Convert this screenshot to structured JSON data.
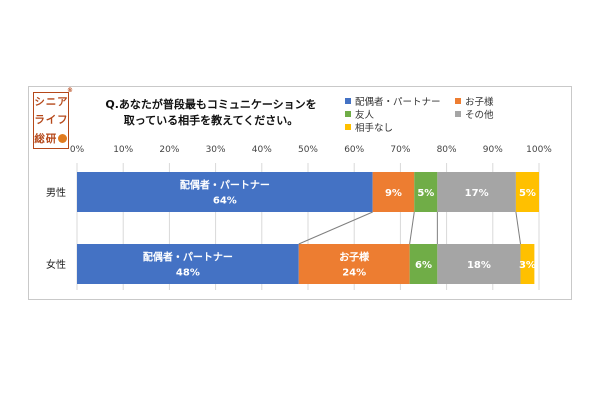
{
  "logo": {
    "chars": [
      "シ",
      "ニ",
      "ア",
      "ラ",
      "イ",
      "フ",
      "総",
      "研"
    ],
    "reg_mark": "®"
  },
  "title_lines": [
    "Q.あなたが普段最もコミュニケーションを",
    "取っている相手を教えてください。"
  ],
  "colors": {
    "partner": "#4472c4",
    "child": "#ed7d31",
    "friend": "#70ad47",
    "other": "#a5a5a5",
    "none": "#ffc000",
    "grid": "#d9d9d9",
    "connector": "#7f7f7f"
  },
  "chart_data": {
    "type": "bar",
    "orientation": "horizontal",
    "stacked": true,
    "percent": true,
    "categories": [
      "男性",
      "女性"
    ],
    "series": [
      {
        "name": "配偶者・パートナー",
        "color_key": "partner",
        "values": [
          64,
          48
        ],
        "labels": [
          "配偶者・パートナー\n64%",
          "配偶者・パートナー\n48%"
        ]
      },
      {
        "name": "お子様",
        "color_key": "child",
        "values": [
          9,
          24
        ],
        "labels": [
          "9%",
          "お子様\n24%"
        ]
      },
      {
        "name": "友人",
        "color_key": "friend",
        "values": [
          5,
          6
        ],
        "labels": [
          "5%",
          "6%"
        ]
      },
      {
        "name": "その他",
        "color_key": "other",
        "values": [
          17,
          18
        ],
        "labels": [
          "17%",
          "18%"
        ]
      },
      {
        "name": "相手なし",
        "color_key": "none",
        "values": [
          5,
          3
        ],
        "labels": [
          "5%",
          "3%"
        ]
      }
    ],
    "xlim": [
      0,
      100
    ],
    "xticks": [
      "0%",
      "10%",
      "20%",
      "30%",
      "40%",
      "50%",
      "60%",
      "70%",
      "80%",
      "90%",
      "100%"
    ],
    "grid": true,
    "series_lines": true,
    "legend_position": "top-right"
  }
}
